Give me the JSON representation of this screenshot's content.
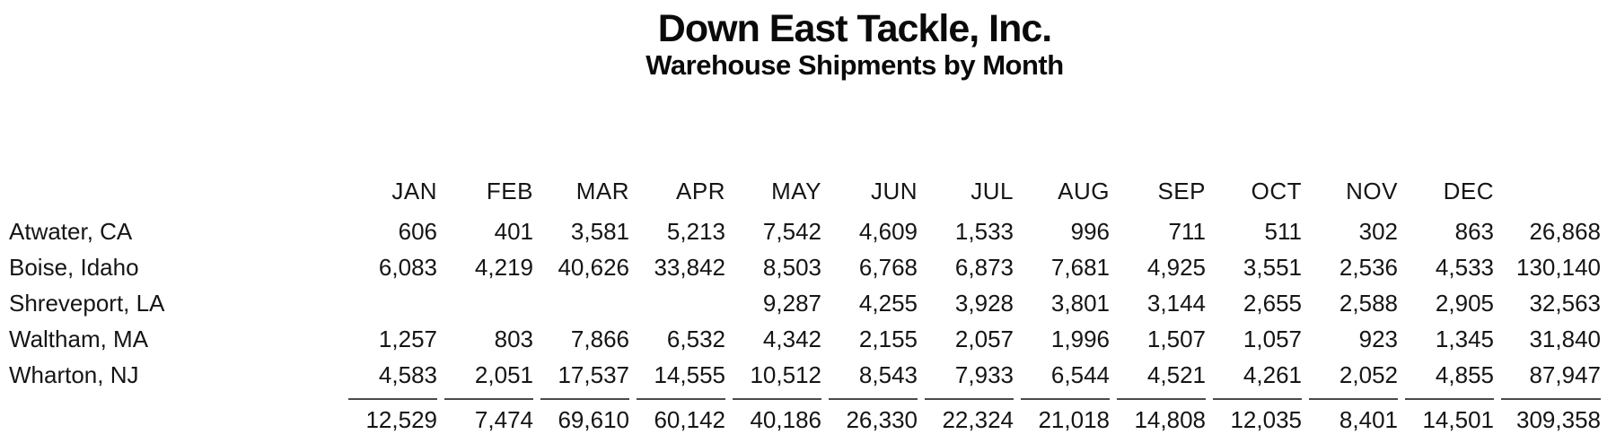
{
  "header": {
    "title": "Down East Tackle, Inc.",
    "subtitle": "Warehouse Shipments by Month"
  },
  "table": {
    "month_columns": [
      "JAN",
      "FEB",
      "MAR",
      "APR",
      "MAY",
      "JUN",
      "JUL",
      "AUG",
      "SEP",
      "OCT",
      "NOV",
      "DEC"
    ],
    "rows": [
      {
        "label": "Atwater, CA",
        "values": [
          "606",
          "401",
          "3,581",
          "5,213",
          "7,542",
          "4,609",
          "1,533",
          "996",
          "711",
          "511",
          "302",
          "863"
        ],
        "total": "26,868"
      },
      {
        "label": "Boise, Idaho",
        "values": [
          "6,083",
          "4,219",
          "40,626",
          "33,842",
          "8,503",
          "6,768",
          "6,873",
          "7,681",
          "4,925",
          "3,551",
          "2,536",
          "4,533"
        ],
        "total": "130,140"
      },
      {
        "label": "Shreveport, LA",
        "values": [
          "",
          "",
          "",
          "",
          "9,287",
          "4,255",
          "3,928",
          "3,801",
          "3,144",
          "2,655",
          "2,588",
          "2,905"
        ],
        "total": "32,563"
      },
      {
        "label": "Waltham, MA",
        "values": [
          "1,257",
          "803",
          "7,866",
          "6,532",
          "4,342",
          "2,155",
          "2,057",
          "1,996",
          "1,507",
          "1,057",
          "923",
          "1,345"
        ],
        "total": "31,840"
      },
      {
        "label": "Wharton, NJ",
        "values": [
          "4,583",
          "2,051",
          "17,537",
          "14,555",
          "10,512",
          "8,543",
          "7,933",
          "6,544",
          "4,521",
          "4,261",
          "2,052",
          "4,855"
        ],
        "total": "87,947"
      }
    ],
    "totals_row": {
      "values": [
        "12,529",
        "7,474",
        "69,610",
        "60,142",
        "40,186",
        "26,330",
        "22,324",
        "21,018",
        "14,808",
        "12,035",
        "8,401",
        "14,501"
      ],
      "grand_total": "309,358"
    }
  },
  "colors": {
    "background": "#ffffff",
    "text": "#111111",
    "rule": "#4a4a4a"
  }
}
